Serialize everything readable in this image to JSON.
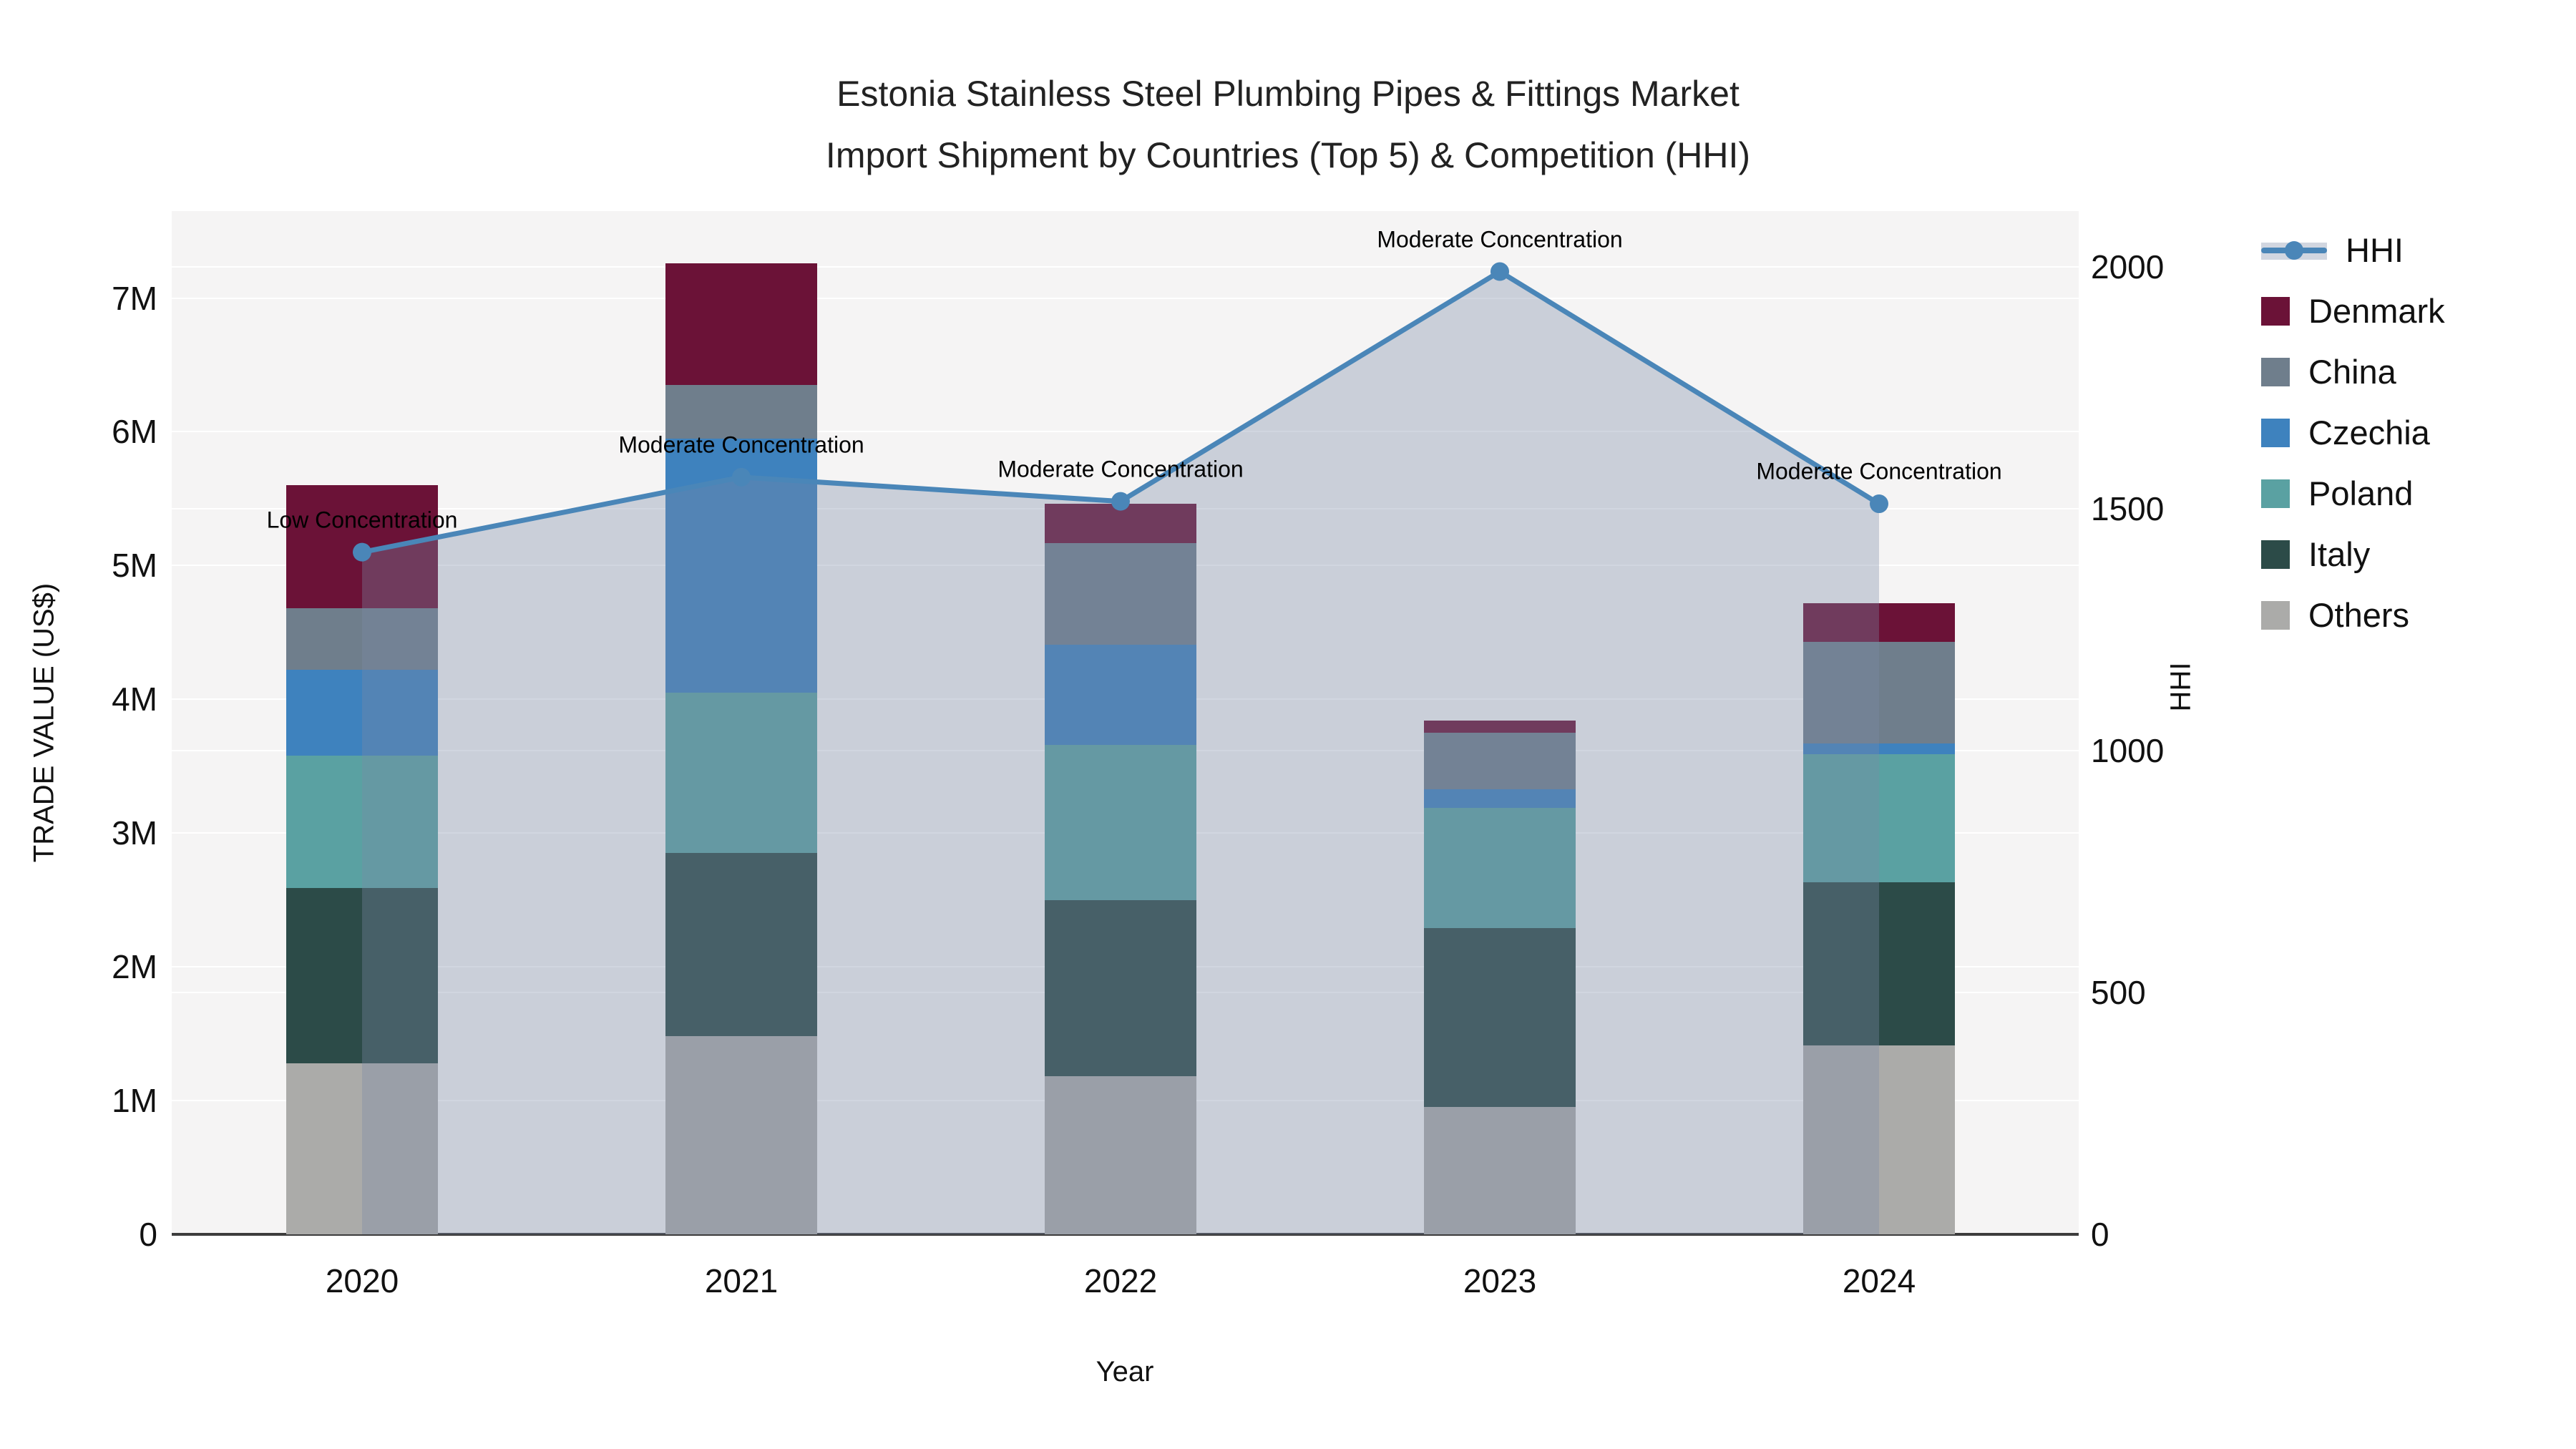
{
  "title": {
    "line1": "Estonia Stainless Steel Plumbing Pipes & Fittings Market",
    "line2": "Import Shipment by Countries (Top 5) & Competition (HHI)"
  },
  "axes": {
    "x": {
      "title": "Year",
      "categories": [
        "2020",
        "2021",
        "2022",
        "2023",
        "2024"
      ]
    },
    "y_left": {
      "title": "TRADE VALUE (US$)",
      "tick_labels": [
        "0",
        "1M",
        "2M",
        "3M",
        "4M",
        "5M",
        "6M",
        "7M"
      ],
      "tick_values_m": [
        0,
        1,
        2,
        3,
        4,
        5,
        6,
        7
      ],
      "max_value_m": 7.65
    },
    "y_right": {
      "title": "HHI",
      "tick_labels": [
        "0",
        "500",
        "1000",
        "1500",
        "2000"
      ],
      "tick_values": [
        0,
        500,
        1000,
        1500,
        2000
      ],
      "max_value": 2115
    }
  },
  "colors": {
    "plot_bg": "#f5f4f4",
    "gridline": "#ffffff",
    "hhi_line": "#4a86b8",
    "hhi_area_fill": "rgba(122,138,165,0.35)",
    "Denmark": "#6b1237",
    "China": "#6f7e8c",
    "Czechia": "#3e82be",
    "Poland": "#5aa1a2",
    "Italy": "#2c4b48",
    "Others": "#ababa9"
  },
  "legend": {
    "entries": [
      {
        "name": "HHI",
        "type": "line"
      },
      {
        "name": "Denmark",
        "type": "square"
      },
      {
        "name": "China",
        "type": "square"
      },
      {
        "name": "Czechia",
        "type": "square"
      },
      {
        "name": "Poland",
        "type": "square"
      },
      {
        "name": "Italy",
        "type": "square"
      },
      {
        "name": "Others",
        "type": "square"
      }
    ]
  },
  "chart_data": {
    "type": "bar+line",
    "title": "Estonia Stainless Steel Plumbing Pipes & Fittings Market — Import Shipment by Countries (Top 5) & Competition (HHI)",
    "categories": [
      "2020",
      "2021",
      "2022",
      "2023",
      "2024"
    ],
    "bar_unit": "M US$",
    "stack_order_bottom_to_top": [
      "Others",
      "Italy",
      "Poland",
      "Czechia",
      "China",
      "Denmark"
    ],
    "series": [
      {
        "name": "Denmark",
        "values": [
          0.92,
          0.91,
          0.29,
          0.09,
          0.29
        ]
      },
      {
        "name": "China",
        "values": [
          0.46,
          0.4,
          0.76,
          0.42,
          0.76
        ]
      },
      {
        "name": "Czechia",
        "values": [
          0.64,
          1.9,
          0.75,
          0.14,
          0.08
        ]
      },
      {
        "name": "Poland",
        "values": [
          0.99,
          1.2,
          1.16,
          0.9,
          0.96
        ]
      },
      {
        "name": "Italy",
        "values": [
          1.31,
          1.37,
          1.32,
          1.34,
          1.22
        ]
      },
      {
        "name": "Others",
        "values": [
          1.28,
          1.48,
          1.18,
          0.95,
          1.41
        ]
      }
    ],
    "bar_totals_m": [
      5.6,
      7.26,
      5.46,
      3.84,
      4.72
    ],
    "hhi": {
      "name": "HHI",
      "values": [
        1410,
        1565,
        1515,
        1990,
        1510
      ],
      "annotations": [
        "Low Concentration",
        "Moderate Concentration",
        "Moderate Concentration",
        "Moderate Concentration",
        "Moderate Concentration"
      ]
    },
    "xlabel": "Year",
    "ylabel_left": "TRADE VALUE (US$)",
    "ylabel_right": "HHI",
    "ylim_left_m": [
      0,
      7.65
    ],
    "ylim_right": [
      0,
      2115
    ],
    "grid": true,
    "legend_position": "right"
  }
}
